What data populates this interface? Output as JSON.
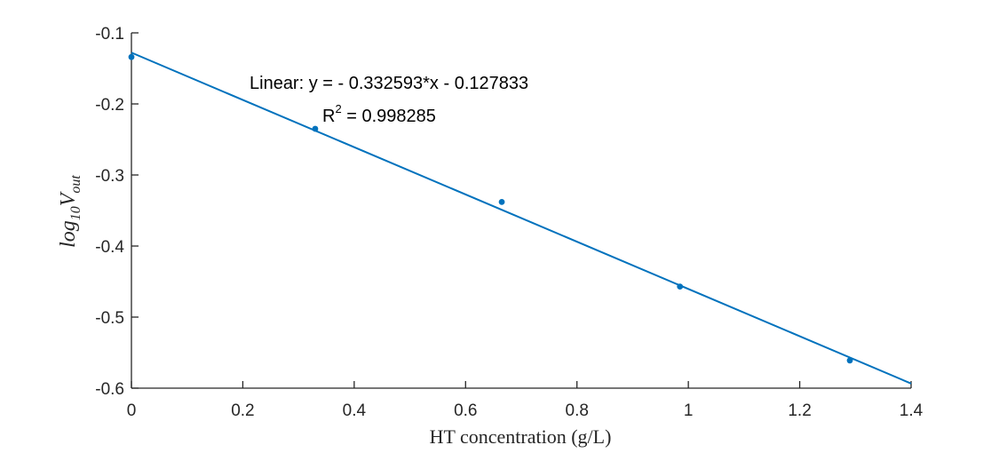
{
  "chart_data": {
    "type": "scatter",
    "xlabel": "HT concentration (g/L)",
    "ylabel": {
      "base": "log",
      "base_sub": "10",
      "main": "V",
      "main_sub": "out"
    },
    "xlim": [
      0,
      1.4
    ],
    "ylim": [
      -0.6,
      -0.1
    ],
    "xticks": [
      0,
      0.2,
      0.4,
      0.6,
      0.8,
      1,
      1.2,
      1.4
    ],
    "xtick_labels": [
      "0",
      "0.2",
      "0.4",
      "0.6",
      "0.8",
      "1",
      "1.2",
      "1.4"
    ],
    "yticks": [
      -0.1,
      -0.2,
      -0.3,
      -0.4,
      -0.5,
      -0.6
    ],
    "ytick_labels": [
      "-0.1",
      "-0.2",
      "-0.3",
      "-0.4",
      "-0.5",
      "-0.6"
    ],
    "series": [
      {
        "x": [
          0,
          0.33,
          0.665,
          0.985,
          1.29
        ],
        "y": [
          -0.134,
          -0.235,
          -0.338,
          -0.457,
          -0.561
        ]
      }
    ],
    "fit": {
      "slope": -0.332593,
      "intercept": -0.127833,
      "x_range": [
        0,
        1.4
      ]
    },
    "annotations": {
      "equation": "Linear:  y = - 0.332593*x - 0.127833",
      "r2_prefix": "R",
      "r2_sup": "2",
      "r2_value": " = 0.998285"
    },
    "grid": false,
    "colors": {
      "series": "#0072BD",
      "axis": "#262626"
    }
  }
}
